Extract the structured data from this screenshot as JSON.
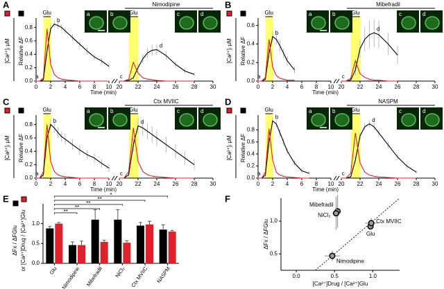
{
  "chart_data": [
    {
      "type": "line",
      "panel": "A",
      "drug": "Nimodipine",
      "stimulus_label": "Glu",
      "stimulus_color": "#ffff70",
      "labels": [
        "a",
        "b",
        "c",
        "d"
      ],
      "xlabel": "Time (min)",
      "ylabel": "Relative ΔF",
      "y2label": "[Ca²⁺]ᵢ μM",
      "x": [
        0,
        0.5,
        1,
        1.5,
        2,
        2.5,
        3,
        3.5,
        4,
        5,
        6,
        7,
        8,
        9,
        10,
        20,
        20.5,
        21,
        21.5,
        22,
        22.5,
        23,
        23.5,
        24,
        25,
        26,
        27,
        28,
        29,
        30
      ],
      "xlim": [
        [
          0,
          10
        ],
        [
          20,
          30
        ]
      ],
      "xticks": [
        0,
        2,
        4,
        6,
        8,
        10,
        20,
        22,
        24,
        26,
        28,
        30
      ],
      "ylim": [
        0,
        0.9
      ],
      "yticks": [
        {
          "value": 0,
          "label": "0.0"
        },
        {
          "value": 0.2,
          "label": "0.2"
        },
        {
          "value": 0.4,
          "label": "0.4"
        },
        {
          "value": 0.6,
          "label": "0.6"
        },
        {
          "value": 0.8,
          "label": "0.8"
        }
      ],
      "stimuli": [
        [
          1,
          2
        ],
        [
          21,
          22
        ]
      ],
      "series": [
        {
          "color": "#000000",
          "values": [
            0,
            0,
            0.02,
            0.45,
            0.78,
            0.85,
            0.83,
            0.8,
            0.75,
            0.65,
            0.55,
            0.45,
            0.36,
            0.3,
            0.22,
            0,
            0,
            0.01,
            0.05,
            0.2,
            0.33,
            0.42,
            0.46,
            0.47,
            0.38,
            0.25,
            0.15,
            0.1,
            null,
            null
          ],
          "errors": [
            0.01,
            0.01,
            0.02,
            0.08,
            0.06,
            0.05,
            0.05,
            0.05,
            0.05,
            0.05,
            0.05,
            0.05,
            0.04,
            0.04,
            0.04,
            0.01,
            0.01,
            0.01,
            0.03,
            0.06,
            0.07,
            0.08,
            0.08,
            0.08,
            0.06,
            0.05,
            0.04,
            0.03,
            null,
            null
          ]
        },
        {
          "color": "#e0202a",
          "values": [
            0,
            0,
            0.05,
            0.78,
            0.25,
            0.1,
            0.05,
            0.03,
            0.02,
            0.01,
            0,
            0,
            0,
            0,
            0,
            0,
            0,
            0.03,
            0.28,
            0.12,
            0.05,
            0.03,
            0.02,
            0.01,
            0,
            0,
            0,
            0,
            null,
            null
          ]
        }
      ]
    },
    {
      "type": "line",
      "panel": "B",
      "drug": "Mibefradil",
      "stimulus_label": "Glu",
      "stimulus_color": "#ffff70",
      "labels": [
        "a",
        "b",
        "c",
        "d"
      ],
      "xlabel": "Time (min)",
      "ylabel": "Relative ΔF",
      "y2label": "[Ca²⁺]ᵢ μM",
      "x": [
        0,
        0.5,
        1,
        1.5,
        2,
        2.5,
        3,
        3.5,
        4,
        5,
        6,
        7,
        8,
        9,
        10,
        20,
        20.5,
        21,
        21.5,
        22,
        22.5,
        23,
        23.5,
        24,
        25,
        26,
        27,
        28,
        29,
        30
      ],
      "xlim": [
        [
          0,
          10
        ],
        [
          20,
          30
        ]
      ],
      "xticks": [
        0,
        2,
        4,
        6,
        8,
        10,
        20,
        22,
        24,
        26,
        28,
        30
      ],
      "ylim": [
        0,
        0.65
      ],
      "yticks": [
        {
          "value": 0,
          "label": "0.0"
        },
        {
          "value": 0.2,
          "label": "0.2"
        },
        {
          "value": 0.4,
          "label": "0.4"
        },
        {
          "value": 0.6,
          "label": "0.6"
        }
      ],
      "stimuli": [
        [
          1,
          2
        ],
        [
          21,
          22
        ]
      ],
      "series": [
        {
          "color": "#000000",
          "values": [
            0,
            0,
            0.02,
            0.3,
            0.48,
            0.45,
            0.38,
            0.3,
            0.22,
            0.12,
            null,
            null,
            null,
            null,
            null,
            0,
            0,
            0.01,
            0.12,
            0.35,
            0.45,
            0.5,
            0.52,
            0.5,
            0.4,
            0.28,
            null,
            null,
            null,
            null
          ],
          "errors": [
            0.01,
            0.01,
            0.02,
            0.05,
            0.06,
            0.06,
            0.06,
            0.05,
            0.05,
            0.04,
            null,
            null,
            null,
            null,
            null,
            0.01,
            0.01,
            0.02,
            0.06,
            0.1,
            0.13,
            0.15,
            0.15,
            0.15,
            0.12,
            0.1,
            null,
            null,
            null,
            null
          ]
        },
        {
          "color": "#e0202a",
          "values": [
            0,
            0,
            0.04,
            0.45,
            0.15,
            0.06,
            0.03,
            0.02,
            0.01,
            0.01,
            null,
            null,
            null,
            null,
            null,
            0,
            0,
            0.03,
            0.22,
            0.08,
            0.04,
            0.02,
            0.01,
            0.01,
            0,
            0,
            null,
            null,
            null,
            null
          ]
        }
      ]
    },
    {
      "type": "line",
      "panel": "C",
      "drug": "Ctx MVIIC",
      "stimulus_label": "Glu",
      "stimulus_color": "#ffff70",
      "labels": [
        "a",
        "b",
        "c",
        "d"
      ],
      "xlabel": "Time (min)",
      "ylabel": "Relative ΔF",
      "y2label": "[Ca²⁺]ᵢ μM",
      "x": [
        0,
        0.5,
        1,
        1.5,
        2,
        2.5,
        3,
        3.5,
        4,
        5,
        6,
        7,
        8,
        9,
        10,
        20,
        20.5,
        21,
        21.5,
        22,
        22.5,
        23,
        23.5,
        24,
        25,
        26,
        27,
        28,
        29,
        30
      ],
      "xlim": [
        [
          0,
          10
        ],
        [
          20,
          30
        ]
      ],
      "xticks": [
        0,
        2,
        4,
        6,
        8,
        10,
        20,
        22,
        24,
        26,
        28,
        30
      ],
      "ylim": [
        0,
        0.9
      ],
      "yticks": [
        {
          "value": 0,
          "label": "0.0"
        },
        {
          "value": 0.2,
          "label": "0.2"
        },
        {
          "value": 0.4,
          "label": "0.4"
        },
        {
          "value": 0.6,
          "label": "0.6"
        },
        {
          "value": 0.8,
          "label": "0.8"
        }
      ],
      "stimuli": [
        [
          1,
          2
        ],
        [
          21,
          22
        ]
      ],
      "series": [
        {
          "color": "#000000",
          "values": [
            0,
            0,
            0.05,
            0.6,
            0.8,
            0.75,
            0.68,
            0.62,
            0.58,
            0.5,
            0.42,
            0.35,
            0.3,
            0.22,
            0.15,
            0,
            0,
            0.05,
            0.5,
            0.78,
            0.75,
            0.7,
            0.65,
            0.6,
            0.5,
            0.4,
            0.3,
            0.2,
            null,
            null
          ],
          "errors": [
            0.01,
            0.01,
            0.03,
            0.08,
            0.08,
            0.08,
            0.08,
            0.08,
            0.08,
            0.08,
            0.08,
            0.07,
            0.07,
            0.06,
            0.06,
            0.01,
            0.01,
            0.03,
            0.1,
            0.12,
            0.12,
            0.12,
            0.12,
            0.12,
            0.12,
            0.11,
            0.1,
            0.08,
            null,
            null
          ]
        },
        {
          "color": "#e0202a",
          "values": [
            0,
            0,
            0.1,
            0.8,
            0.25,
            0.1,
            0.05,
            0.03,
            0.02,
            0.01,
            0,
            0,
            0,
            0,
            0,
            0,
            0,
            0.1,
            0.75,
            0.25,
            0.1,
            0.05,
            0.03,
            0.02,
            0.01,
            0,
            0,
            0,
            null,
            null
          ]
        }
      ]
    },
    {
      "type": "line",
      "panel": "D",
      "drug": "NASPM",
      "stimulus_label": "Glu",
      "stimulus_color": "#ffff70",
      "labels": [
        "a",
        "b",
        "c",
        "d"
      ],
      "xlabel": "Time (min)",
      "ylabel": "Relative ΔF",
      "y2label": "[Ca²⁺]ᵢ μM",
      "x": [
        0,
        0.5,
        1,
        1.5,
        2,
        2.5,
        3,
        3.5,
        4,
        5,
        6,
        7,
        8,
        9,
        10,
        20,
        20.5,
        21,
        21.5,
        22,
        22.5,
        23,
        23.5,
        24,
        25,
        26,
        27,
        28,
        29,
        30
      ],
      "xlim": [
        [
          0,
          10
        ],
        [
          20,
          30
        ]
      ],
      "xticks": [
        0,
        2,
        4,
        6,
        8,
        10,
        20,
        22,
        24,
        26,
        28,
        30
      ],
      "ylim": [
        0,
        1.0
      ],
      "yticks": [
        {
          "value": 0,
          "label": "0.0"
        },
        {
          "value": 0.2,
          "label": "0.2"
        },
        {
          "value": 0.4,
          "label": "0.4"
        },
        {
          "value": 0.6,
          "label": "0.6"
        },
        {
          "value": 0.8,
          "label": "0.8"
        }
      ],
      "stimuli": [
        [
          1,
          2
        ],
        [
          21,
          22
        ]
      ],
      "series": [
        {
          "color": "#000000",
          "values": [
            0,
            0,
            0.05,
            0.6,
            0.95,
            0.9,
            0.75,
            0.6,
            0.45,
            0.25,
            0.12,
            0.08,
            null,
            null,
            null,
            0,
            0,
            0.02,
            0.3,
            0.7,
            0.85,
            0.9,
            0.85,
            0.75,
            0.55,
            0.35,
            0.2,
            0.1,
            null,
            null
          ],
          "errors": [
            0.01,
            0.01,
            0.03,
            0.06,
            0.06,
            0.06,
            0.06,
            0.06,
            0.05,
            0.05,
            0.04,
            0.03,
            null,
            null,
            null,
            0.01,
            0.01,
            0.02,
            0.05,
            0.06,
            0.06,
            0.06,
            0.06,
            0.06,
            0.06,
            0.05,
            0.04,
            0.03,
            null,
            null
          ]
        },
        {
          "color": "#e0202a",
          "values": [
            0,
            0,
            0.1,
            0.82,
            0.3,
            0.1,
            0.05,
            0.03,
            0.02,
            0.01,
            0,
            0,
            null,
            null,
            null,
            0,
            0,
            0.08,
            0.75,
            0.25,
            0.1,
            0.05,
            0.03,
            0.02,
            0.01,
            0,
            0,
            0,
            null,
            null
          ]
        }
      ]
    },
    {
      "type": "bar",
      "panel": "E",
      "categories": [
        "Glu",
        "Nimodipine",
        "Mibefradil",
        "NiCl₂",
        "Ctx MVIIC",
        "NASPM"
      ],
      "ylabel": [
        "ΔFx / ΔFGlu",
        "or [Ca²⁺]Drug / [Ca²⁺]Glu"
      ],
      "ylim": [
        0,
        1.5
      ],
      "yticks": [
        {
          "value": 0,
          "label": "0.0"
        },
        {
          "value": 0.5,
          "label": "0.5"
        },
        {
          "value": 1,
          "label": "1.0"
        }
      ],
      "series": [
        {
          "color": "#000000",
          "values": [
            0.88,
            0.46,
            1.1,
            1.1,
            0.95,
            0.85
          ],
          "errors": [
            0.05,
            0.08,
            0.25,
            0.25,
            0.08,
            0.12
          ]
        },
        {
          "color": "#e0202a",
          "values": [
            1.0,
            0.46,
            0.54,
            0.52,
            0.98,
            0.8
          ],
          "errors": [
            0.03,
            0.1,
            0.04,
            0.05,
            0.08,
            0.03
          ]
        }
      ],
      "comparisons": [
        {
          "with": "Nimodipine",
          "label": "**"
        },
        {
          "with": "Mibefradil",
          "label": "**"
        },
        {
          "with": "NiCl₂",
          "label": "**"
        },
        {
          "with": "Ctx MVIIC",
          "label": "**"
        },
        {
          "with": "NASPM",
          "label": "*"
        }
      ]
    },
    {
      "type": "scatter",
      "panel": "F",
      "xlabel": "[Ca²⁺]Drug / [Ca²⁺]Glu",
      "ylabel": "ΔFx / ΔFGlu",
      "labels": [
        "Glu",
        "Nimodipine",
        "Mibefradil",
        "NiCl₂",
        "Ctx MVIIC"
      ],
      "x": [
        0.97,
        0.47,
        0.54,
        0.52,
        0.98
      ],
      "values": [
        0.92,
        0.47,
        1.15,
        1.12,
        0.97
      ],
      "xerr": [
        0.03,
        0.1,
        0.04,
        0.05,
        0.08
      ],
      "yerr": [
        0.05,
        0.08,
        0.25,
        0.25,
        0.08
      ],
      "color": "#999999",
      "diagonal": true,
      "xlim": [
        -0.2,
        1.35
      ],
      "ylim": [
        0.25,
        1.35
      ],
      "xticks": [
        {
          "value": 0,
          "label": "0.0"
        },
        {
          "value": 0.5,
          "label": "0.5"
        },
        {
          "value": 1,
          "label": "1.0"
        }
      ],
      "yticks": [
        {
          "value": 0.5,
          "label": "0.5"
        },
        {
          "value": 1,
          "label": "1.0"
        }
      ]
    }
  ]
}
